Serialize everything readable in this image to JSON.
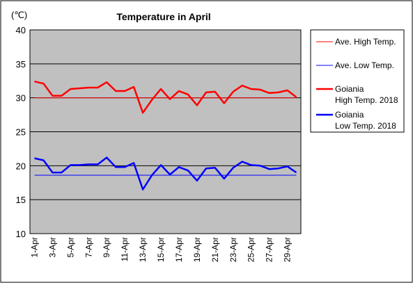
{
  "chart_data": {
    "type": "line",
    "title": "Temperature in April",
    "unit_label": "(℃)",
    "ylim": [
      10,
      40
    ],
    "yticks": [
      10,
      15,
      20,
      25,
      30,
      35,
      40
    ],
    "grid": true,
    "legend_position": "right",
    "x": [
      "1-Apr",
      "2-Apr",
      "3-Apr",
      "4-Apr",
      "5-Apr",
      "6-Apr",
      "7-Apr",
      "8-Apr",
      "9-Apr",
      "10-Apr",
      "11-Apr",
      "12-Apr",
      "13-Apr",
      "14-Apr",
      "15-Apr",
      "16-Apr",
      "17-Apr",
      "18-Apr",
      "19-Apr",
      "20-Apr",
      "21-Apr",
      "22-Apr",
      "23-Apr",
      "24-Apr",
      "25-Apr",
      "26-Apr",
      "27-Apr",
      "28-Apr",
      "29-Apr",
      "30-Apr"
    ],
    "x_tick_labels": [
      "1-Apr",
      "3-Apr",
      "5-Apr",
      "7-Apr",
      "9-Apr",
      "11-Apr",
      "13-Apr",
      "15-Apr",
      "17-Apr",
      "19-Apr",
      "21-Apr",
      "23-Apr",
      "25-Apr",
      "27-Apr",
      "29-Apr"
    ],
    "series": [
      {
        "name": "Ave. High Temp.",
        "color": "#ff0000",
        "style": "thin",
        "values": [
          30.0,
          30.0,
          30.0,
          30.0,
          30.0,
          30.0,
          30.0,
          30.0,
          30.0,
          30.0,
          30.0,
          30.0,
          30.0,
          30.0,
          30.0,
          30.0,
          30.0,
          30.0,
          30.0,
          30.0,
          30.0,
          30.0,
          30.0,
          30.0,
          30.0,
          30.0,
          30.0,
          30.0,
          30.0,
          30.0
        ]
      },
      {
        "name": "Ave. Low Temp.",
        "color": "#0000ff",
        "style": "thin",
        "values": [
          18.6,
          18.6,
          18.6,
          18.6,
          18.6,
          18.6,
          18.6,
          18.6,
          18.6,
          18.6,
          18.6,
          18.6,
          18.6,
          18.6,
          18.6,
          18.6,
          18.6,
          18.6,
          18.6,
          18.6,
          18.6,
          18.6,
          18.6,
          18.6,
          18.6,
          18.6,
          18.6,
          18.6,
          18.6,
          18.6
        ]
      },
      {
        "name": "Goiania High Temp. 2018",
        "name_lines": [
          "Goiania",
          "High Temp. 2018"
        ],
        "color": "#ff0000",
        "style": "thick",
        "values": [
          32.4,
          32.1,
          30.3,
          30.3,
          31.3,
          31.4,
          31.5,
          31.5,
          32.3,
          31.0,
          31.0,
          31.6,
          27.8,
          29.7,
          31.3,
          29.8,
          31.0,
          30.5,
          28.9,
          30.8,
          30.9,
          29.2,
          30.9,
          31.8,
          31.3,
          31.2,
          30.7,
          30.8,
          31.1,
          30.1
        ]
      },
      {
        "name": "Goiania Low Temp. 2018",
        "name_lines": [
          "Goiania",
          "Low Temp. 2018"
        ],
        "color": "#0000ff",
        "style": "thick",
        "values": [
          21.1,
          20.8,
          19.0,
          19.0,
          20.1,
          20.1,
          20.2,
          20.2,
          21.2,
          19.8,
          19.8,
          20.4,
          16.5,
          18.6,
          20.1,
          18.7,
          19.8,
          19.3,
          17.8,
          19.6,
          19.7,
          18.1,
          19.7,
          20.6,
          20.1,
          20.0,
          19.5,
          19.6,
          19.9,
          19.0
        ]
      }
    ]
  }
}
